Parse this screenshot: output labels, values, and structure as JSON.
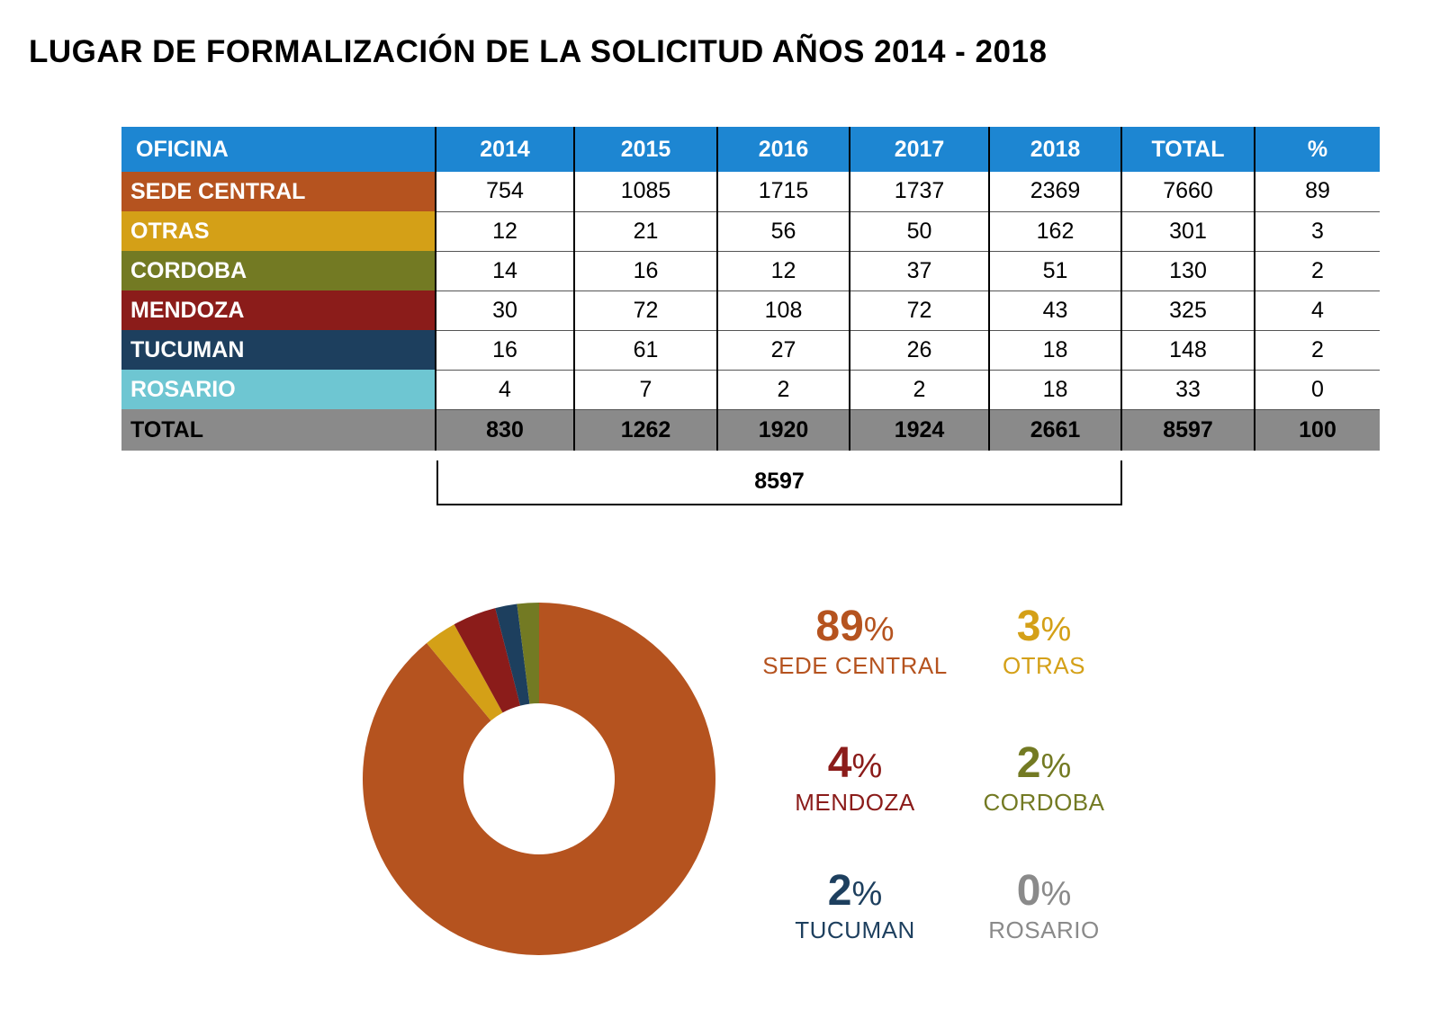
{
  "title": "LUGAR DE FORMALIZACIÓN DE LA SOLICITUD AÑOS 2014 - 2018",
  "table": {
    "headers": [
      "OFICINA",
      "2014",
      "2015",
      "2016",
      "2017",
      "2018",
      "TOTAL",
      "%"
    ],
    "rows": [
      {
        "label": "SEDE CENTRAL",
        "color": "#b5531f",
        "values": [
          "754",
          "1085",
          "1715",
          "1737",
          "2369",
          "7660",
          "89"
        ]
      },
      {
        "label": "OTRAS",
        "color": "#d4a017",
        "values": [
          "12",
          "21",
          "56",
          "50",
          "162",
          "301",
          "3"
        ]
      },
      {
        "label": "CORDOBA",
        "color": "#737a23",
        "values": [
          "14",
          "16",
          "12",
          "37",
          "51",
          "130",
          "2"
        ]
      },
      {
        "label": "MENDOZA",
        "color": "#8b1c1a",
        "values": [
          "30",
          "72",
          "108",
          "72",
          "43",
          "325",
          "4"
        ]
      },
      {
        "label": "TUCUMAN",
        "color": "#1d3f5e",
        "values": [
          "16",
          "61",
          "27",
          "26",
          "18",
          "148",
          "2"
        ]
      },
      {
        "label": "ROSARIO",
        "color": "#6ec6d2",
        "values": [
          "4",
          "7",
          "2",
          "2",
          "18",
          "33",
          "0"
        ]
      }
    ],
    "total": {
      "label": "TOTAL",
      "values": [
        "830",
        "1262",
        "1920",
        "1924",
        "2661",
        "8597",
        "100"
      ]
    },
    "grand_total": "8597"
  },
  "chart_data": {
    "type": "pie",
    "categories": [
      "SEDE CENTRAL",
      "OTRAS",
      "MENDOZA",
      "TUCUMAN",
      "CORDOBA",
      "ROSARIO"
    ],
    "values": [
      89,
      3,
      4,
      2,
      2,
      0
    ],
    "colors": [
      "#b5531f",
      "#d4a017",
      "#8b1c1a",
      "#1d3f5e",
      "#737a23",
      "#8a8a8a"
    ],
    "donut": true,
    "legend": [
      {
        "pct": "89",
        "sign": "%",
        "name": "SEDE CENTRAL",
        "color": "#b5531f"
      },
      {
        "pct": "3",
        "sign": "%",
        "name": "OTRAS",
        "color": "#d4a017"
      },
      {
        "pct": "4",
        "sign": "%",
        "name": "MENDOZA",
        "color": "#8b1c1a"
      },
      {
        "pct": "2",
        "sign": "%",
        "name": "CORDOBA",
        "color": "#737a23"
      },
      {
        "pct": "2",
        "sign": "%",
        "name": "TUCUMAN",
        "color": "#1d3f5e"
      },
      {
        "pct": "0",
        "sign": "%",
        "name": "ROSARIO",
        "color": "#8a8a8a"
      }
    ]
  }
}
